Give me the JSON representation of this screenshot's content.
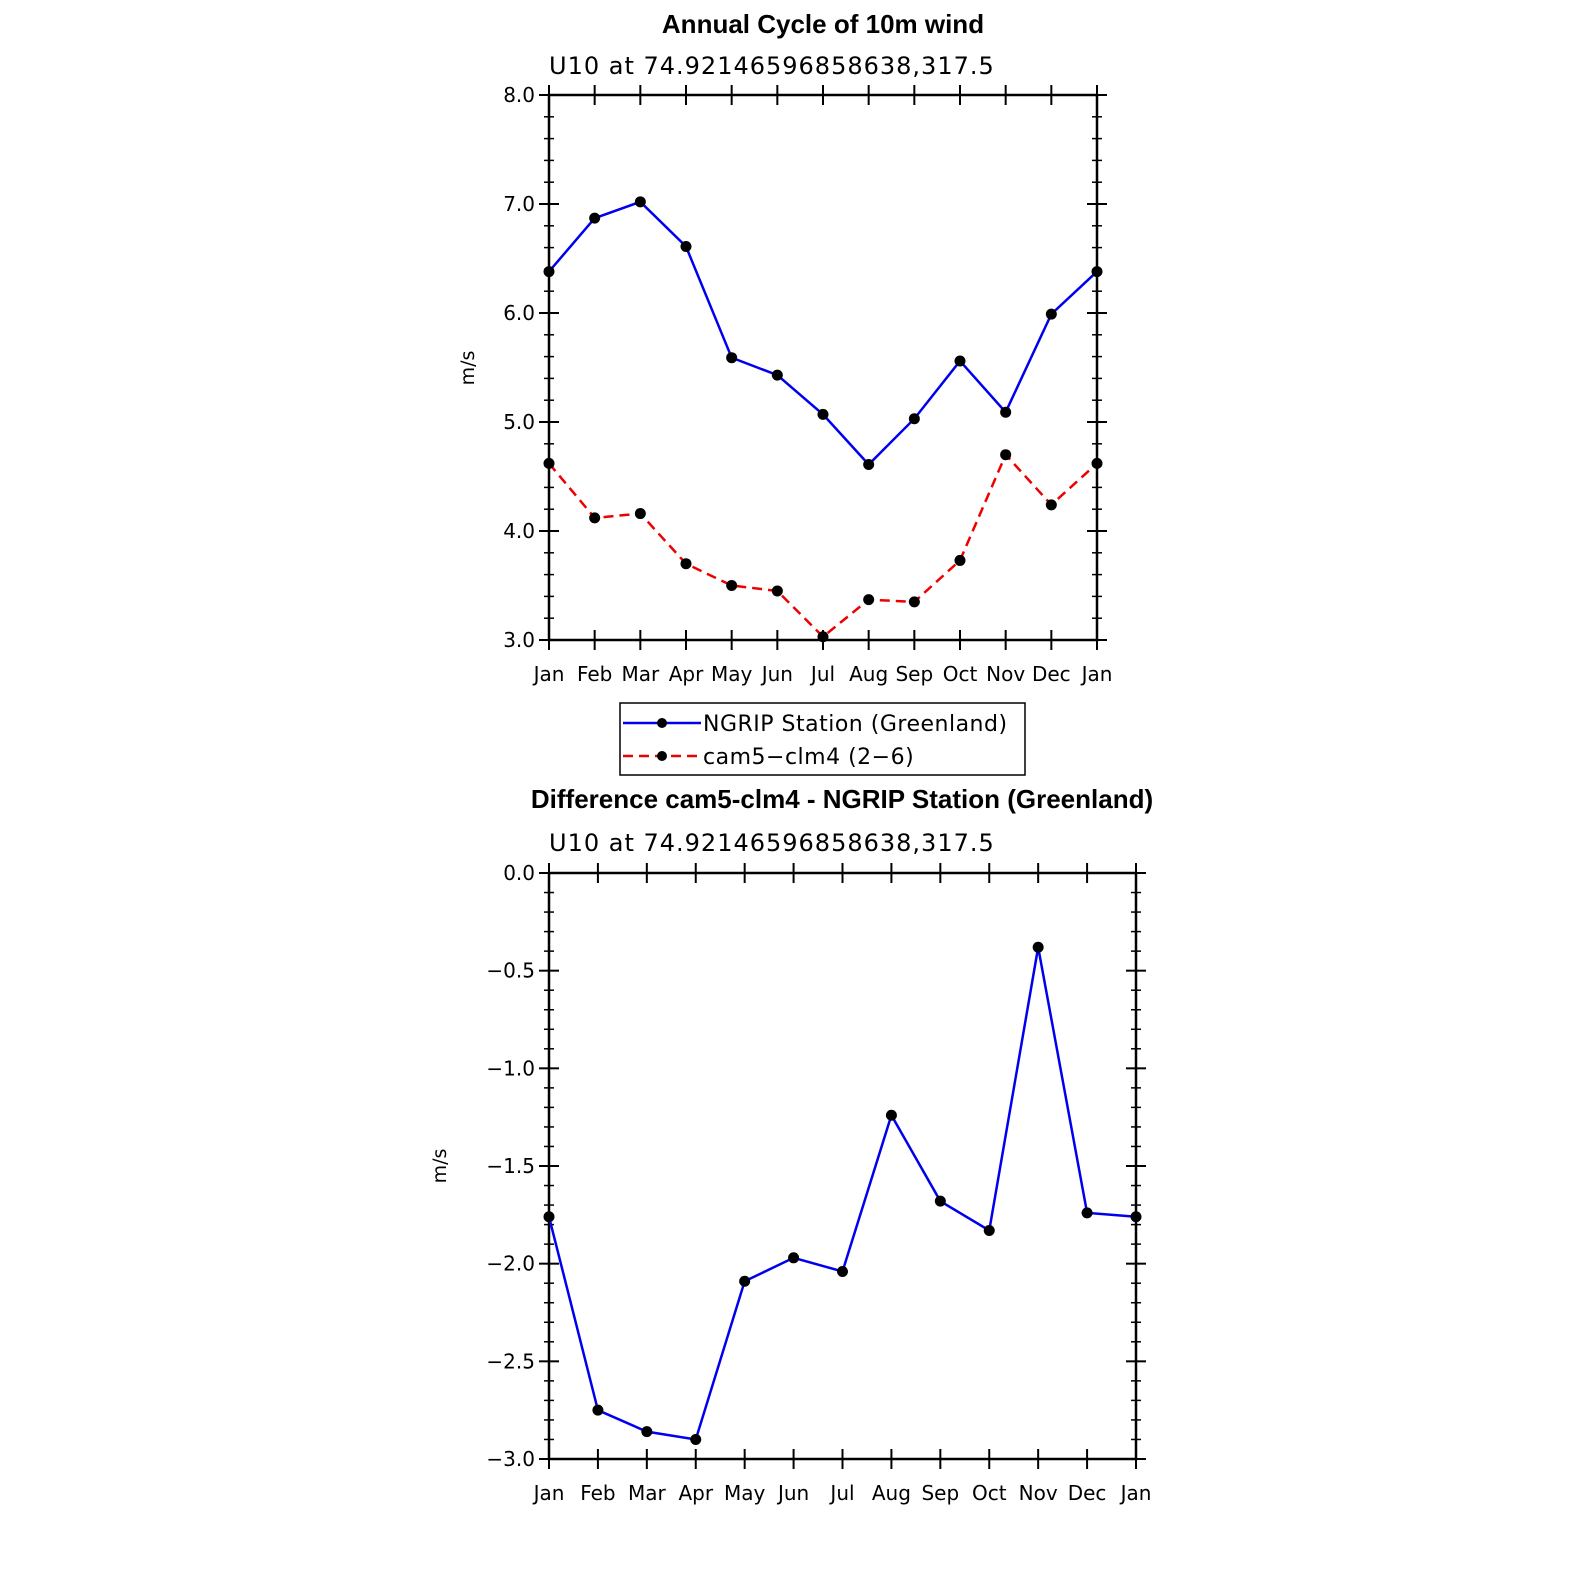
{
  "chart_data": [
    {
      "type": "line",
      "title": "Annual Cycle of 10m wind",
      "subtitle": "U10  at  74.92146596858638,317.5",
      "ylabel": "m/s",
      "ylim": [
        3.0,
        8.0
      ],
      "yticks": [
        "3.0",
        "4.0",
        "5.0",
        "6.0",
        "7.0",
        "8.0"
      ],
      "categories": [
        "Jan",
        "Feb",
        "Mar",
        "Apr",
        "May",
        "Jun",
        "Jul",
        "Aug",
        "Sep",
        "Oct",
        "Nov",
        "Dec",
        "Jan"
      ],
      "series": [
        {
          "name": "NGRIP Station (Greenland)",
          "color": "#0000ee",
          "dash": "solid",
          "values": [
            6.38,
            6.87,
            7.02,
            6.61,
            5.59,
            5.43,
            5.07,
            4.61,
            5.03,
            5.56,
            5.09,
            5.99,
            6.38
          ]
        },
        {
          "name": "cam5−clm4 (2−6)",
          "color": "#ee0000",
          "dash": "dashed",
          "values": [
            4.62,
            4.12,
            4.16,
            3.7,
            3.5,
            3.45,
            3.03,
            3.37,
            3.35,
            3.73,
            4.7,
            4.24,
            4.62
          ]
        }
      ],
      "legend": "below"
    },
    {
      "type": "line",
      "title": "Difference cam5-clm4 - NGRIP Station (Greenland)",
      "subtitle": "U10  at  74.92146596858638,317.5",
      "ylabel": "m/s",
      "ylim": [
        -3.0,
        0.0
      ],
      "yticks": [
        "−3.0",
        "−2.5",
        "−2.0",
        "−1.5",
        "−1.0",
        "−0.5",
        "0.0"
      ],
      "categories": [
        "Jan",
        "Feb",
        "Mar",
        "Apr",
        "May",
        "Jun",
        "Jul",
        "Aug",
        "Sep",
        "Oct",
        "Nov",
        "Dec",
        "Jan"
      ],
      "series": [
        {
          "color": "#0000ee",
          "dash": "solid",
          "values": [
            -1.76,
            -2.75,
            -2.86,
            -2.9,
            -2.09,
            -1.97,
            -2.04,
            -1.24,
            -1.68,
            -1.83,
            -0.38,
            -1.74,
            -1.76
          ]
        }
      ]
    }
  ]
}
